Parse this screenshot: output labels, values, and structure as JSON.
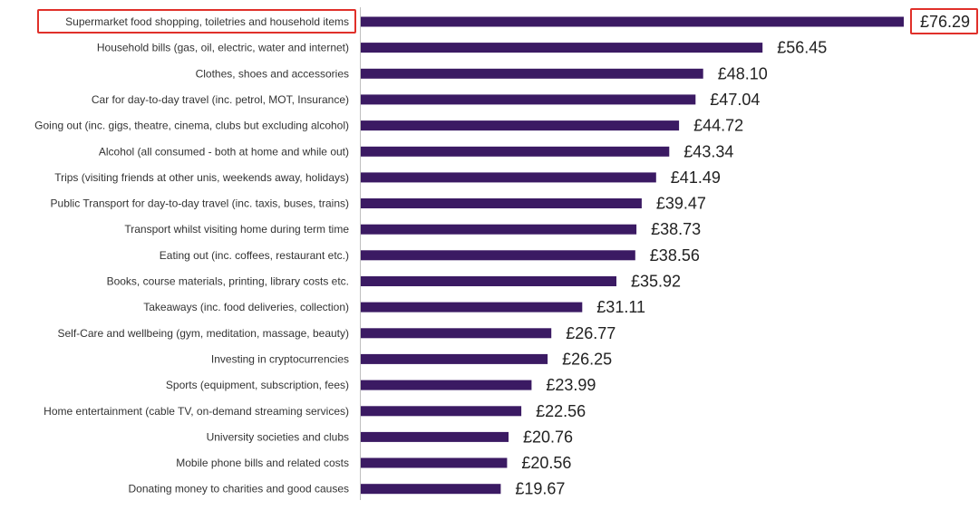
{
  "colors": {
    "bar": "#3b1a63",
    "highlight_box": "#e0302a",
    "axis": "#bfbfbf"
  },
  "chart_data": {
    "type": "bar",
    "orientation": "horizontal",
    "currency": "£",
    "categories": [
      "Supermarket food shopping, toiletries and household items",
      "Household bills (gas, oil, electric, water and internet)",
      "Clothes, shoes and accessories",
      "Car for day-to-day travel (inc. petrol, MOT, Insurance)",
      "Going out (inc. gigs, theatre, cinema, clubs but excluding alcohol)",
      "Alcohol (all consumed - both at home and while out)",
      "Trips (visiting friends at other unis, weekends away, holidays)",
      "Public Transport for day-to-day travel (inc. taxis, buses, trains)",
      "Transport whilst visiting home during term time",
      "Eating out (inc. coffees, restaurant etc.)",
      "Books, course materials, printing, library costs etc.",
      "Takeaways (inc. food deliveries, collection)",
      "Self-Care and wellbeing (gym, meditation, massage, beauty)",
      "Investing in cryptocurrencies",
      "Sports (equipment, subscription, fees)",
      "Home entertainment (cable TV, on-demand streaming services)",
      "University societies and clubs",
      "Mobile phone bills and related costs",
      "Donating money to charities and good causes"
    ],
    "values": [
      76.29,
      56.45,
      48.1,
      47.04,
      44.72,
      43.34,
      41.49,
      39.47,
      38.73,
      38.56,
      35.92,
      31.11,
      26.77,
      26.25,
      23.99,
      22.56,
      20.76,
      20.56,
      19.67
    ],
    "value_labels": [
      "£76.29",
      "£56.45",
      "£48.10",
      "£47.04",
      "£44.72",
      "£43.34",
      "£41.49",
      "£39.47",
      "£38.73",
      "£38.56",
      "£35.92",
      "£31.11",
      "£26.77",
      "£26.25",
      "£23.99",
      "£22.56",
      "£20.76",
      "£20.56",
      "£19.67"
    ],
    "highlighted_index": 0,
    "xlim": [
      0,
      76.29
    ],
    "grid": false,
    "legend": "none"
  }
}
